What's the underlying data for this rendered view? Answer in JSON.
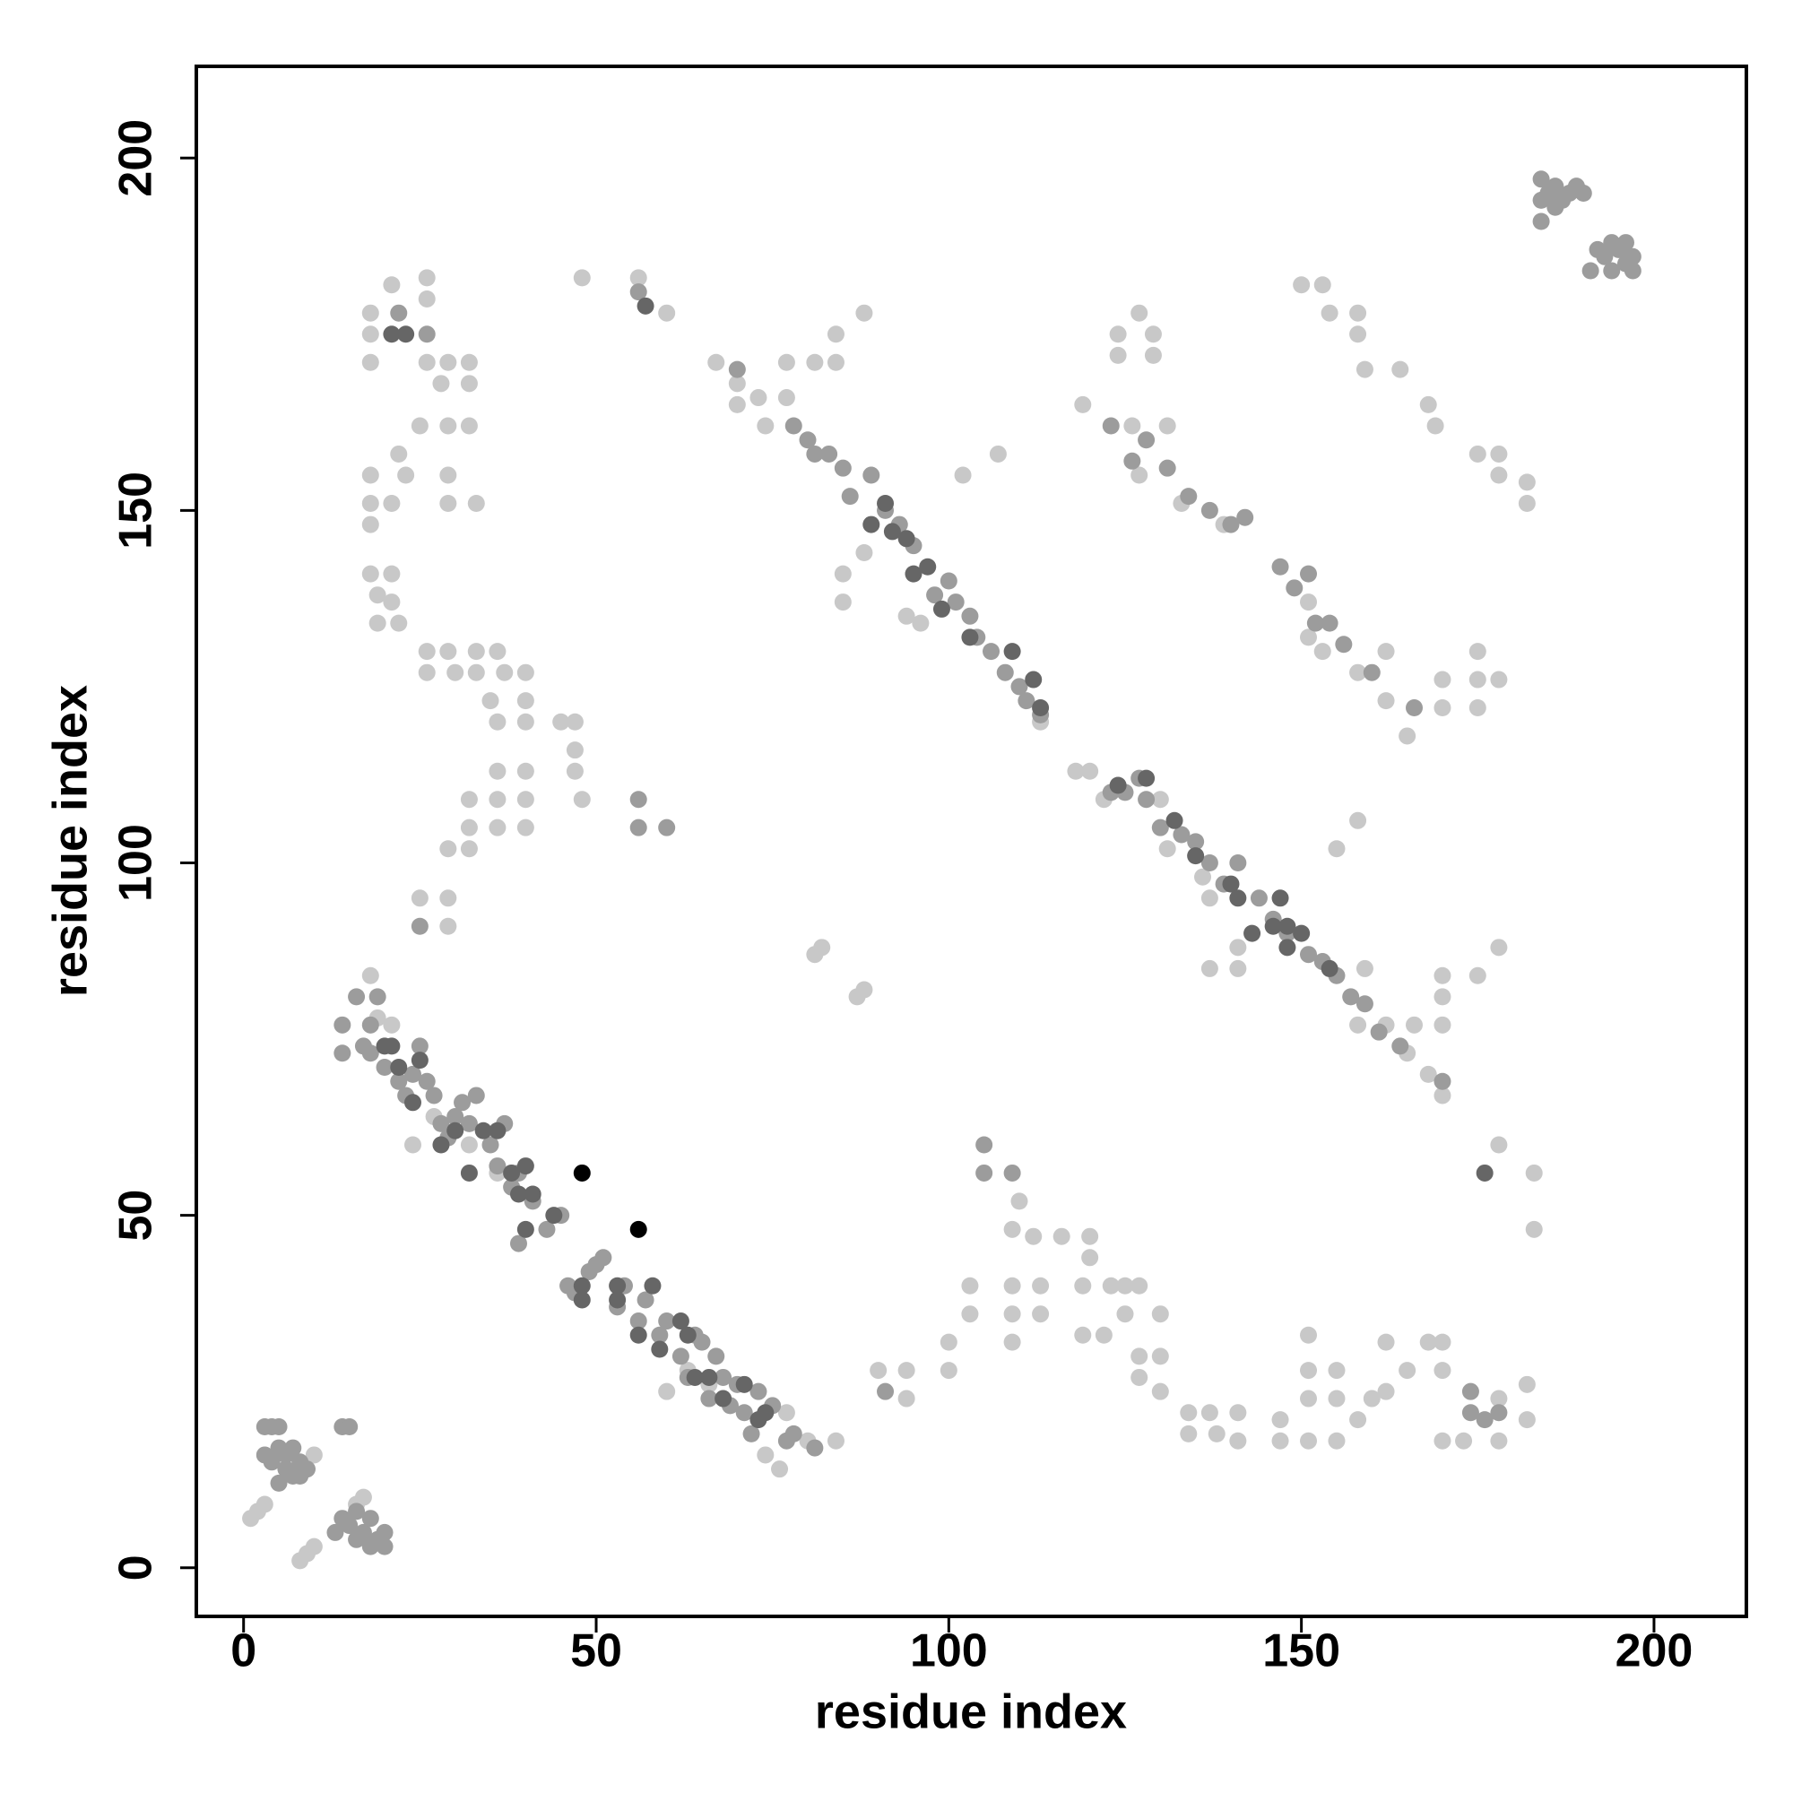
{
  "chart_data": {
    "type": "scatter",
    "x_label": "residue index",
    "y_label": "residue index",
    "xlim": [
      -6.7,
      213.1
    ],
    "ylim": [
      -6.9,
      213
    ],
    "xticks": [
      0,
      50,
      100,
      150,
      200
    ],
    "yticks": [
      0,
      50,
      100,
      150,
      200
    ],
    "grid": false,
    "series": [
      {
        "color": "#c8c8c8",
        "x": [
          1,
          2,
          3,
          8,
          9,
          10,
          16,
          17,
          10,
          18,
          19,
          21,
          24,
          27,
          32,
          36,
          60,
          63,
          66,
          74,
          77,
          80,
          84,
          76,
          18,
          18,
          18,
          18,
          18,
          18,
          18,
          19,
          19,
          21,
          21,
          22,
          21,
          23,
          21,
          22,
          25,
          26,
          26,
          26,
          29,
          28,
          29,
          29,
          29,
          32,
          32,
          32,
          33,
          26,
          26,
          29,
          30,
          33,
          33,
          35,
          36,
          37,
          36,
          40,
          40,
          40,
          45,
          47,
          47,
          47,
          48,
          36,
          36,
          40,
          40,
          32,
          32,
          36,
          40,
          29,
          32,
          25,
          29,
          29,
          48,
          56,
          60,
          67,
          70,
          70,
          73,
          74,
          77,
          77,
          81,
          84,
          84,
          88,
          85,
          88,
          85,
          94,
          96,
          102,
          107,
          113,
          82,
          81,
          87,
          88,
          118,
          120,
          122,
          130,
          131,
          136,
          137,
          141,
          137,
          141,
          155,
          158,
          159,
          158,
          162,
          165,
          166,
          168,
          170,
          170,
          170,
          170,
          175,
          178,
          119,
          124,
          124,
          127,
          129,
          129,
          126,
          131,
          127,
          133,
          139,
          150,
          153,
          154,
          158,
          158,
          159,
          164,
          168,
          169,
          175,
          178,
          178,
          182,
          182,
          151,
          153,
          158,
          162,
          162,
          165,
          170,
          170,
          175,
          175,
          175,
          178,
          151,
          100,
          103,
          103,
          100,
          109,
          109,
          109,
          113,
          113,
          110,
          109,
          112,
          116,
          120,
          120,
          119,
          123,
          125,
          127,
          125,
          119,
          122,
          127,
          127,
          130,
          130,
          130,
          134,
          134,
          137,
          138,
          141,
          141,
          147,
          147,
          151,
          151,
          151,
          151,
          155,
          155,
          155,
          158,
          160,
          162,
          162,
          165,
          168,
          170,
          170,
          170,
          173,
          178,
          178,
          182,
          182,
          90,
          94,
          94,
          178,
          183,
          183
        ],
        "values": [
          7,
          8,
          9,
          1,
          2,
          3,
          9,
          10,
          16,
          84,
          78,
          77,
          60,
          64,
          60,
          56,
          25,
          28,
          26,
          16,
          22,
          18,
          18,
          14,
          171,
          175,
          178,
          155,
          151,
          148,
          141,
          138,
          134,
          141,
          137,
          134,
          182,
          155,
          151,
          158,
          162,
          171,
          180,
          183,
          171,
          168,
          162,
          155,
          151,
          171,
          168,
          162,
          151,
          130,
          127,
          130,
          127,
          130,
          127,
          123,
          130,
          127,
          120,
          127,
          123,
          120,
          120,
          120,
          116,
          113,
          109,
          113,
          109,
          113,
          109,
          109,
          105,
          105,
          105,
          102,
          102,
          95,
          95,
          91,
          183,
          183,
          178,
          171,
          168,
          165,
          166,
          162,
          171,
          166,
          171,
          175,
          171,
          178,
          141,
          144,
          137,
          135,
          134,
          155,
          158,
          120,
          88,
          87,
          81,
          82,
          113,
          113,
          109,
          109,
          102,
          98,
          95,
          88,
          85,
          85,
          102,
          106,
          85,
          77,
          77,
          73,
          77,
          70,
          84,
          81,
          77,
          67,
          84,
          88,
          165,
          172,
          175,
          178,
          172,
          175,
          162,
          162,
          155,
          151,
          148,
          182,
          182,
          178,
          178,
          175,
          170,
          170,
          165,
          162,
          158,
          158,
          155,
          154,
          151,
          132,
          130,
          127,
          130,
          123,
          118,
          126,
          122,
          130,
          126,
          122,
          126,
          137,
          32,
          36,
          40,
          28,
          40,
          36,
          32,
          40,
          36,
          52,
          48,
          47,
          47,
          47,
          44,
          40,
          40,
          40,
          40,
          36,
          33,
          33,
          30,
          27,
          36,
          30,
          25,
          22,
          19,
          22,
          19,
          22,
          18,
          18,
          21,
          18,
          24,
          28,
          33,
          18,
          24,
          28,
          21,
          24,
          25,
          32,
          28,
          32,
          32,
          28,
          18,
          18,
          18,
          24,
          26,
          21,
          28,
          28,
          24,
          60,
          56,
          48
        ]
      },
      {
        "color": "#9c9c9c",
        "x": [
          3,
          4,
          5,
          3,
          4,
          5,
          6,
          7,
          8,
          6,
          7,
          5,
          8,
          9,
          14,
          15,
          13,
          14,
          15,
          16,
          17,
          18,
          16,
          18,
          20,
          19,
          20,
          14,
          14,
          16,
          17,
          18,
          18,
          19,
          20,
          22,
          23,
          24,
          25,
          26,
          27,
          28,
          29,
          30,
          31,
          32,
          33,
          35,
          36,
          37,
          38,
          39,
          41,
          43,
          45,
          39,
          46,
          47,
          49,
          50,
          51,
          53,
          54,
          56,
          57,
          59,
          60,
          62,
          63,
          64,
          65,
          66,
          67,
          68,
          69,
          70,
          71,
          72,
          73,
          75,
          77,
          78,
          81,
          70,
          78,
          80,
          81,
          83,
          85,
          86,
          89,
          91,
          93,
          95,
          98,
          100,
          101,
          103,
          104,
          106,
          108,
          110,
          111,
          113,
          26,
          22,
          56,
          123,
          125,
          127,
          128,
          130,
          133,
          135,
          137,
          139,
          141,
          144,
          146,
          148,
          151,
          153,
          155,
          157,
          159,
          161,
          164,
          170,
          123,
          126,
          128,
          131,
          134,
          137,
          140,
          142,
          147,
          149,
          151,
          152,
          154,
          156,
          160,
          166,
          184,
          184,
          184,
          185,
          186,
          186,
          187,
          188,
          189,
          190,
          191,
          192,
          193,
          194,
          194,
          195,
          196,
          197,
          196,
          197,
          105,
          105,
          109,
          91,
          174,
          174,
          176,
          178,
          25,
          56,
          56,
          60
        ],
        "values": [
          20,
          20,
          20,
          16,
          15,
          17,
          16,
          17,
          15,
          14,
          13,
          12,
          13,
          14,
          20,
          20,
          5,
          7,
          6,
          8,
          5,
          7,
          4,
          3,
          5,
          4,
          3,
          77,
          73,
          81,
          74,
          77,
          73,
          81,
          71,
          69,
          67,
          70,
          74,
          69,
          67,
          63,
          61,
          64,
          66,
          63,
          67,
          60,
          57,
          63,
          54,
          56,
          52,
          48,
          50,
          46,
          40,
          39,
          42,
          43,
          44,
          37,
          40,
          35,
          38,
          33,
          35,
          30,
          27,
          33,
          32,
          24,
          30,
          27,
          23,
          26,
          22,
          19,
          25,
          23,
          18,
          19,
          17,
          170,
          162,
          160,
          158,
          158,
          156,
          152,
          155,
          150,
          148,
          145,
          138,
          140,
          137,
          135,
          132,
          130,
          127,
          125,
          123,
          121,
          175,
          178,
          181,
          110,
          110,
          112,
          109,
          105,
          104,
          103,
          100,
          97,
          100,
          95,
          92,
          90,
          87,
          86,
          84,
          81,
          80,
          76,
          74,
          69,
          162,
          157,
          160,
          156,
          152,
          150,
          148,
          149,
          142,
          139,
          141,
          134,
          134,
          131,
          127,
          122,
          191,
          194,
          197,
          195,
          196,
          193,
          194,
          195,
          196,
          195,
          184,
          187,
          186,
          184,
          188,
          187,
          185,
          184,
          188,
          186,
          60,
          56,
          56,
          25,
          25,
          22,
          21,
          22,
          91,
          105,
          109,
          105
        ]
      },
      {
        "color": "#666666",
        "x": [
          20,
          21,
          22,
          24,
          25,
          28,
          30,
          32,
          34,
          36,
          38,
          39,
          40,
          40,
          41,
          44,
          48,
          48,
          53,
          53,
          56,
          58,
          59,
          62,
          63,
          64,
          66,
          68,
          71,
          74,
          73,
          89,
          91,
          92,
          94,
          95,
          97,
          99,
          103,
          109,
          112,
          113,
          21,
          23,
          57,
          124,
          128,
          132,
          135,
          140,
          141,
          143,
          146,
          147,
          148,
          148,
          150,
          154,
          176
        ],
        "values": [
          74,
          74,
          71,
          66,
          72,
          60,
          62,
          56,
          62,
          62,
          56,
          53,
          48,
          57,
          53,
          50,
          40,
          38,
          40,
          38,
          33,
          40,
          31,
          35,
          33,
          27,
          27,
          24,
          26,
          22,
          21,
          148,
          151,
          147,
          146,
          141,
          142,
          136,
          132,
          130,
          126,
          122,
          175,
          175,
          179,
          111,
          112,
          106,
          101,
          97,
          95,
          90,
          91,
          95,
          91,
          88,
          90,
          85,
          56
        ]
      },
      {
        "color": "#000000",
        "x": [
          48,
          56
        ],
        "values": [
          56,
          48
        ]
      }
    ]
  }
}
